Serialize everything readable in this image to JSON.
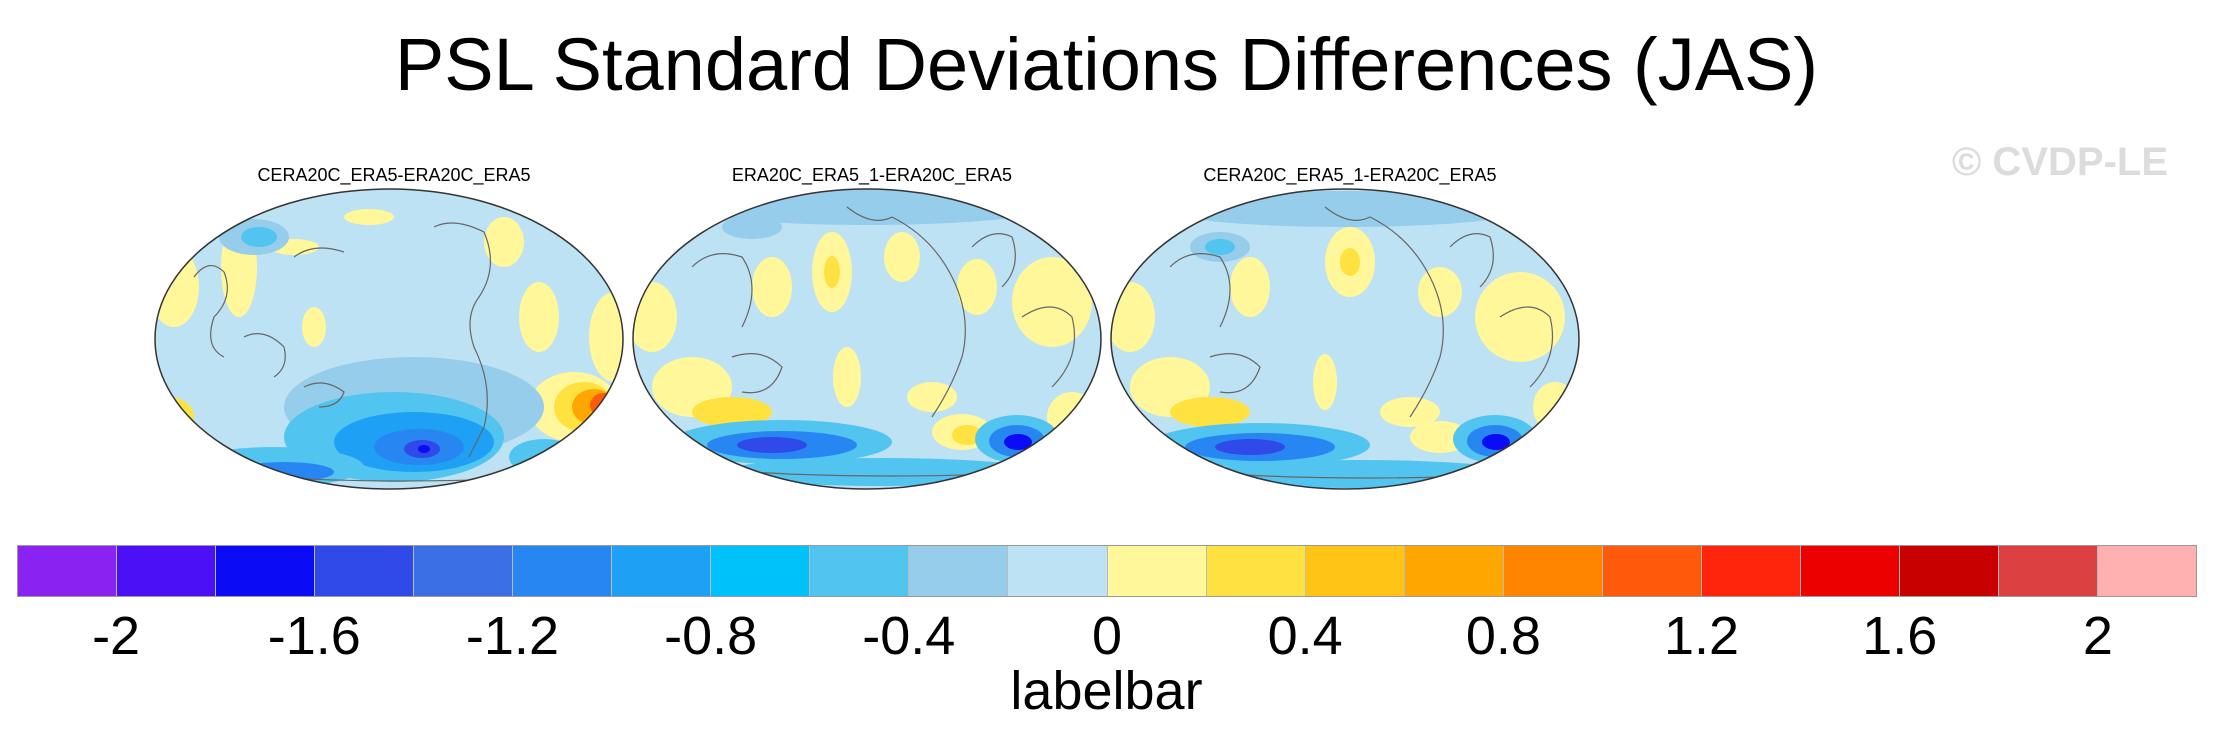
{
  "title": "PSL Standard Deviations Differences (JAS)",
  "watermark": "© CVDP-LE",
  "panels": [
    {
      "title": "CERA20C_ERA5-ERA20C_ERA5"
    },
    {
      "title": "ERA20C_ERA5_1-ERA20C_ERA5"
    },
    {
      "title": "CERA20C_ERA5_1-ERA20C_ERA5"
    }
  ],
  "colorbar": {
    "label": "labelbar",
    "colors": [
      "#8a22f2",
      "#4b10f5",
      "#0b0cf5",
      "#2f4ae8",
      "#3a6fe6",
      "#2786f2",
      "#1ea0f5",
      "#00c2fa",
      "#52c4f0",
      "#96cdea",
      "#bde2f4",
      "#fff79a",
      "#ffe140",
      "#ffc416",
      "#ffa700",
      "#ff8500",
      "#ff5a0c",
      "#ff240c",
      "#ec0000",
      "#c80000",
      "#dc4040",
      "#ffb0b0"
    ],
    "tick_labels": [
      "-2",
      "-1.6",
      "-1.2",
      "-0.8",
      "-0.4",
      "0",
      "0.4",
      "0.8",
      "1.2",
      "1.6",
      "2"
    ],
    "tick_values": [
      -2,
      -1.6,
      -1.2,
      -0.8,
      -0.4,
      0,
      0.4,
      0.8,
      1.2,
      1.6,
      2
    ],
    "range": [
      -2.2,
      2.2
    ]
  }
}
